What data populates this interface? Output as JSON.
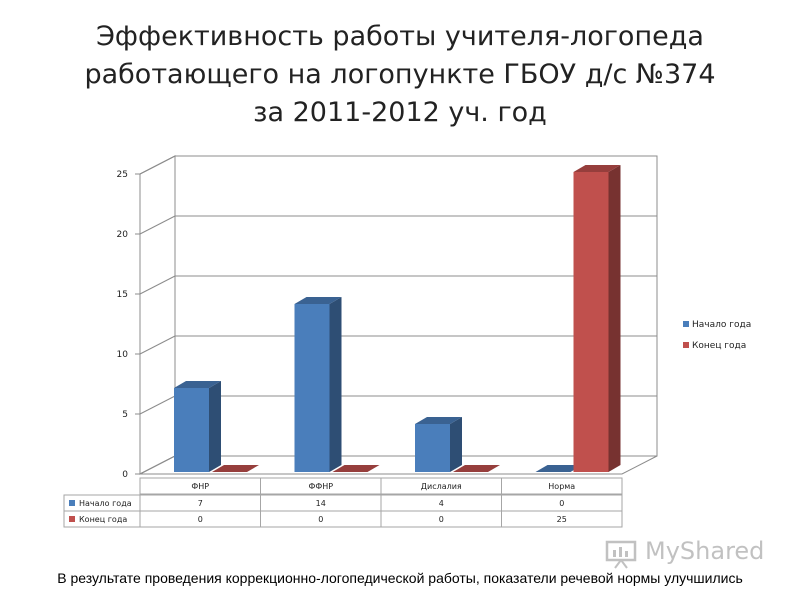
{
  "title_lines": [
    "Эффективность работы учителя-логопеда",
    "работающего на логопункте ГБОУ д/с №374",
    "за 2011-2012 уч. год"
  ],
  "caption": "В результате проведения коррекционно-логопедической работы, показатели речевой нормы улучшились",
  "watermark": {
    "text": "MyShared",
    "icon": "presentation-board-icon"
  },
  "colors": {
    "blue": "#4a7ebb",
    "red": "#c0504d",
    "grid": "#8c8c8c"
  },
  "chart_data": {
    "type": "bar",
    "categories": [
      "ФНР",
      "ФФНР",
      "Дислалия",
      "Норма"
    ],
    "series": [
      {
        "name": "Начало года",
        "values": [
          7,
          14,
          4,
          0
        ]
      },
      {
        "name": "Конец года",
        "values": [
          0,
          0,
          0,
          25
        ]
      }
    ],
    "ylim": [
      0,
      25
    ],
    "yticks": [
      0,
      5,
      10,
      15,
      20,
      25
    ],
    "grid": true,
    "legend": "right",
    "data_table": true
  }
}
